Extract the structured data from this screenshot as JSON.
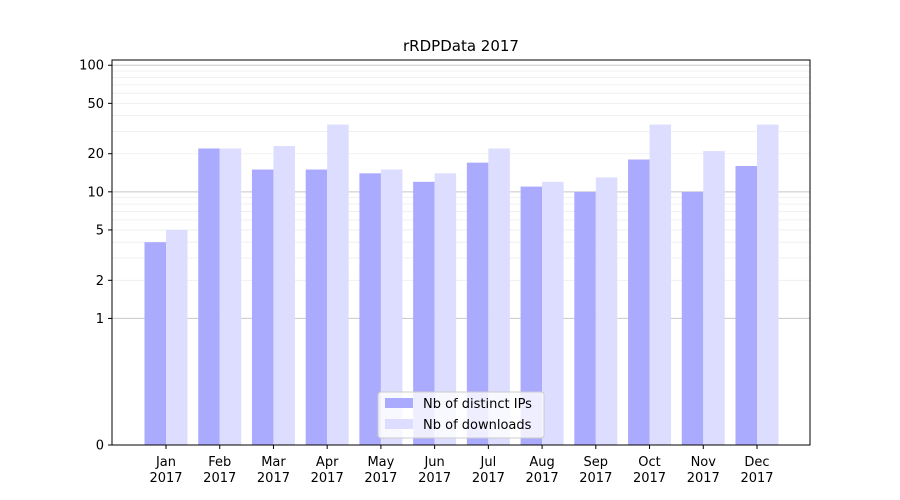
{
  "chart_data": {
    "type": "bar",
    "title": "rRDPData 2017",
    "xlabel": "",
    "ylabel": "",
    "yscale": "symlog",
    "ylim": [
      0,
      110
    ],
    "yticks": [
      "0",
      "1",
      "2",
      "5",
      "10",
      "20",
      "50",
      "100"
    ],
    "grid": true,
    "legend_position": "bottom-center",
    "categories": [
      {
        "month": "Jan",
        "year": "2017"
      },
      {
        "month": "Feb",
        "year": "2017"
      },
      {
        "month": "Mar",
        "year": "2017"
      },
      {
        "month": "Apr",
        "year": "2017"
      },
      {
        "month": "May",
        "year": "2017"
      },
      {
        "month": "Jun",
        "year": "2017"
      },
      {
        "month": "Jul",
        "year": "2017"
      },
      {
        "month": "Aug",
        "year": "2017"
      },
      {
        "month": "Sep",
        "year": "2017"
      },
      {
        "month": "Oct",
        "year": "2017"
      },
      {
        "month": "Nov",
        "year": "2017"
      },
      {
        "month": "Dec",
        "year": "2017"
      }
    ],
    "series": [
      {
        "name": "Nb of distinct IPs",
        "color": "#aaaaff",
        "values": [
          4,
          22,
          15,
          15,
          14,
          12,
          17,
          11,
          10,
          18,
          10,
          16
        ]
      },
      {
        "name": "Nb of downloads",
        "color": "#ddddff",
        "values": [
          5,
          22,
          23,
          34,
          15,
          14,
          22,
          12,
          13,
          34,
          21,
          34
        ]
      }
    ]
  }
}
